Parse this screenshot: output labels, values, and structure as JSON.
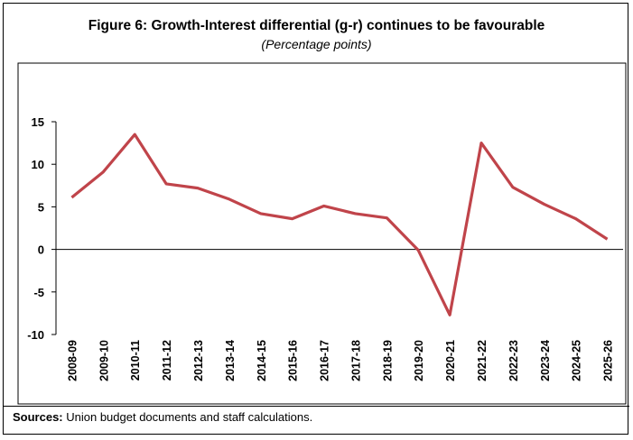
{
  "chart_data": {
    "type": "line",
    "title": "Figure 6: Growth-Interest differential (g-r) continues to be favourable",
    "subtitle": "(Percentage points)",
    "xlabel": "",
    "ylabel": "",
    "ylim": [
      -10,
      15
    ],
    "yticks": [
      15,
      10,
      5,
      0,
      -5,
      -10
    ],
    "categories": [
      "2008-09",
      "2009-10",
      "2010-11",
      "2011-12",
      "2012-13",
      "2013-14",
      "2014-15",
      "2015-16",
      "2016-17",
      "2017-18",
      "2018-19",
      "2019-20",
      "2020-21",
      "2021-22",
      "2022-23",
      "2023-24",
      "2024-25",
      "2025-26"
    ],
    "series": [
      {
        "name": "g-r",
        "color": "#c0444a",
        "values": [
          6.1,
          9.1,
          13.5,
          7.7,
          7.2,
          5.9,
          4.2,
          3.6,
          5.1,
          4.2,
          3.7,
          -0.1,
          -7.7,
          12.5,
          7.3,
          5.3,
          3.6,
          1.2
        ]
      }
    ],
    "grid": false,
    "legend": "none"
  },
  "footer": {
    "sources_label": "Sources:",
    "sources_text": " Union budget documents and staff calculations."
  }
}
